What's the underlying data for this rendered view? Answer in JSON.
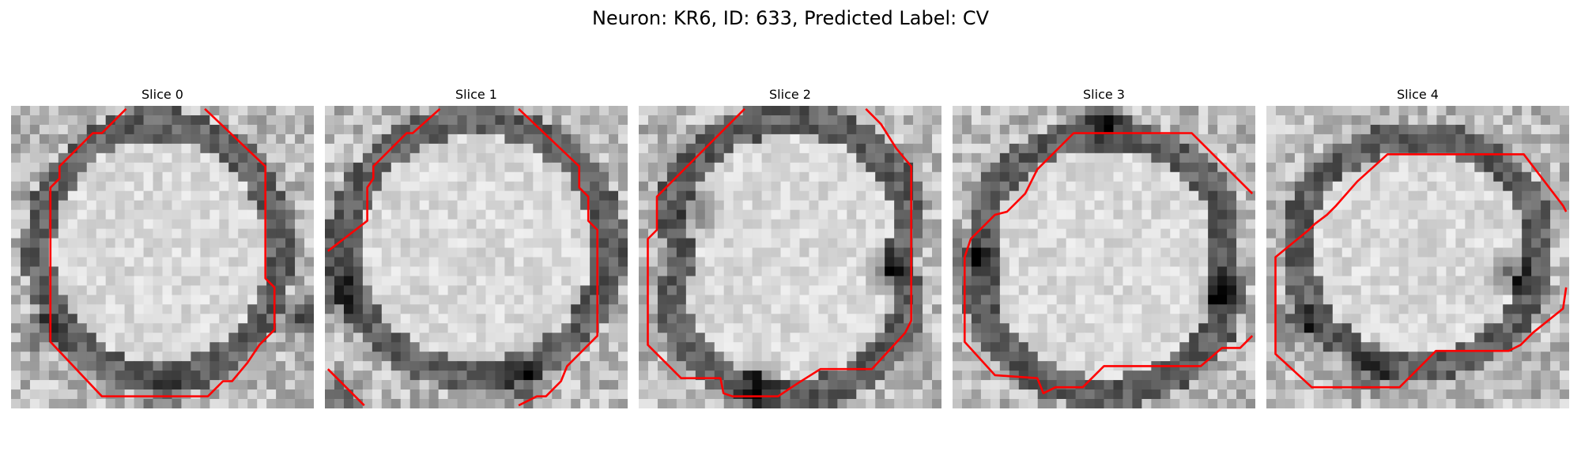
{
  "figure": {
    "title": "Neuron: KR6, ID: 633, Predicted Label: CV"
  },
  "contour_color": "#ff0000",
  "panels": [
    {
      "title": "Slice 0"
    },
    {
      "title": "Slice 1"
    },
    {
      "title": "Slice 2"
    },
    {
      "title": "Slice 3"
    },
    {
      "title": "Slice 4"
    }
  ]
}
